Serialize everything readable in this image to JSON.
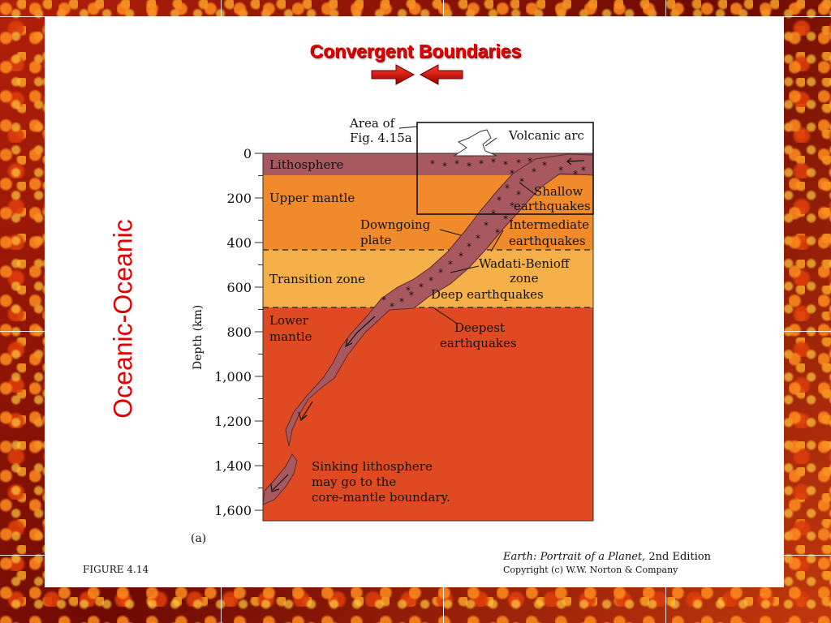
{
  "slide": {
    "title": "Convergent Boundaries",
    "side_label": "Oceanic-Oceanic"
  },
  "figure": {
    "area_of_line1": "Area of",
    "area_of_line2": "Fig. 4.15a",
    "volcanic_arc": "Volcanic arc",
    "lithosphere": "Lithosphere",
    "upper_mantle": "Upper mantle",
    "transition_zone": "Transition zone",
    "lower_mantle_line1": "Lower",
    "lower_mantle_line2": "mantle",
    "downgoing_line1": "Downgoing",
    "downgoing_line2": "plate",
    "shallow_line1": "Shallow",
    "shallow_line2": "earthquakes",
    "intermediate_line1": "Intermediate",
    "intermediate_line2": "earthquakes",
    "wadati_line1": "Wadati-Benioff",
    "wadati_line2": "zone",
    "deep_eq": "Deep earthquakes",
    "deepest_line1": "Deepest",
    "deepest_line2": "earthquakes",
    "sinking_line1": "Sinking lithosphere",
    "sinking_line2": "may go to the",
    "sinking_line3": "core-mantle boundary.",
    "panel_label": "(a)",
    "axis_label": "Depth (km)",
    "depth_ticks": [
      "0",
      "200",
      "400",
      "600",
      "800",
      "1,000",
      "1,200",
      "1,400",
      "1,600"
    ],
    "figure_number": "FIGURE 4.14",
    "book_title": "Earth: Portrait of a Planet,",
    "book_edition": " 2nd Edition",
    "copyright": "Copyright (c) W.W. Norton & Company"
  },
  "colors": {
    "title_red": "#e00000",
    "lithosphere": "#a8585f",
    "slab": "#a8585f",
    "upper_mantle": "#f08a2a",
    "transition_zone": "#f6b04a",
    "lower_mantle": "#e04a22"
  }
}
